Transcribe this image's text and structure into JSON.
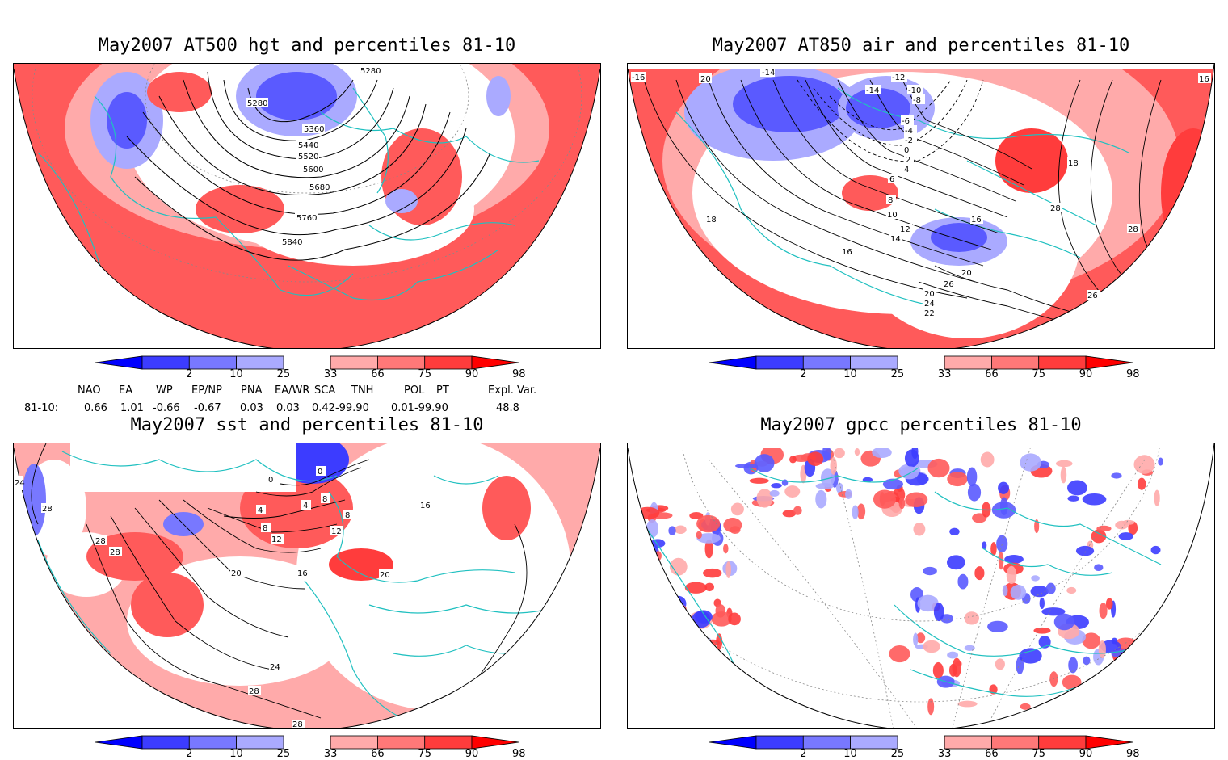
{
  "panels": [
    {
      "id": "hgt",
      "title": "May2007 AT500 hgt and percentiles 81-10",
      "contour_labels": [
        "5280",
        "5280",
        "5360",
        "5440",
        "5520",
        "5600",
        "5680",
        "5760",
        "5840"
      ]
    },
    {
      "id": "air",
      "title": "May2007 AT850 air and percentiles 81-10",
      "contour_labels": [
        "-16",
        "20",
        "-14",
        "-12",
        "-10",
        "-8",
        "-14",
        "-6",
        "-4",
        "-2",
        "0",
        "2",
        "4",
        "6",
        "8",
        "10",
        "12",
        "14",
        "16",
        "18",
        "18",
        "28",
        "28",
        "20",
        "24",
        "22",
        "20",
        "26",
        "26",
        "20",
        "16",
        "16"
      ]
    },
    {
      "id": "sst",
      "title": "May2007 sst and percentiles 81-10",
      "contour_labels": [
        "24",
        "28",
        "28",
        "28",
        "0",
        "0",
        "4",
        "4",
        "8",
        "8",
        "8",
        "12",
        "12",
        "16",
        "16",
        "20",
        "20",
        "24",
        "28",
        "28"
      ]
    },
    {
      "id": "gpcc",
      "title": "May2007 gpcc percentiles 81-10",
      "contour_labels": []
    }
  ],
  "colorbar": {
    "labels": [
      "2",
      "10",
      "25",
      "33",
      "66",
      "75",
      "90",
      "98"
    ],
    "colors": [
      "#0000ff",
      "#3c3cff",
      "#7878ff",
      "#aaaaff",
      "#ffffff",
      "#ffaaaa",
      "#ff7878",
      "#ff3c3c",
      "#ff0000"
    ]
  },
  "indices": {
    "headers": [
      "NAO",
      "EA",
      "WP",
      "EP/NP",
      "PNA",
      "EA/WR",
      "SCA",
      "TNH",
      "POL",
      "PT",
      "Expl. Var."
    ],
    "row_label": "81-10:",
    "values": [
      "0.66",
      "1.01",
      "-0.66",
      "-0.67",
      "0.03",
      "0.03",
      "0.42-99.90",
      "",
      "0.01-99.90",
      "",
      "48.8"
    ]
  },
  "style": {
    "coast": "#20c0c0",
    "warm": "#ff5a5a",
    "warm_light": "#ffaaaa",
    "cool": "#5a5aff",
    "cool_light": "#aaaaff"
  }
}
